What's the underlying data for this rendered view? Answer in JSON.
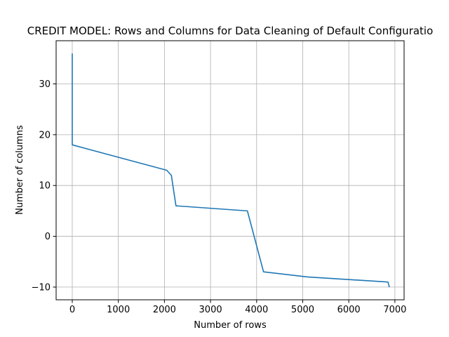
{
  "chart_data": {
    "type": "line",
    "title": "CREDIT MODEL: Rows and Columns for Data Cleaning of Default Configuratio",
    "xlabel": "Number of rows",
    "ylabel": "Number of columns",
    "xlim": [
      -350,
      7200
    ],
    "ylim": [
      -12.5,
      38.5
    ],
    "xticks": [
      0,
      1000,
      2000,
      3000,
      4000,
      5000,
      6000,
      7000
    ],
    "xtick_labels": [
      "0",
      "1000",
      "2000",
      "3000",
      "4000",
      "5000",
      "6000",
      "7000"
    ],
    "yticks": [
      -10,
      0,
      10,
      20,
      30
    ],
    "ytick_labels": [
      "−10",
      "0",
      "10",
      "20",
      "30"
    ],
    "grid": true,
    "series": [
      {
        "color": "#1f77b4",
        "x": [
          0,
          0,
          0,
          2050,
          2150,
          2250,
          3800,
          4150,
          5100,
          6850,
          6880
        ],
        "y": [
          36,
          18,
          18,
          13,
          12,
          6,
          5,
          -7,
          -8,
          -9,
          -10
        ]
      }
    ]
  }
}
